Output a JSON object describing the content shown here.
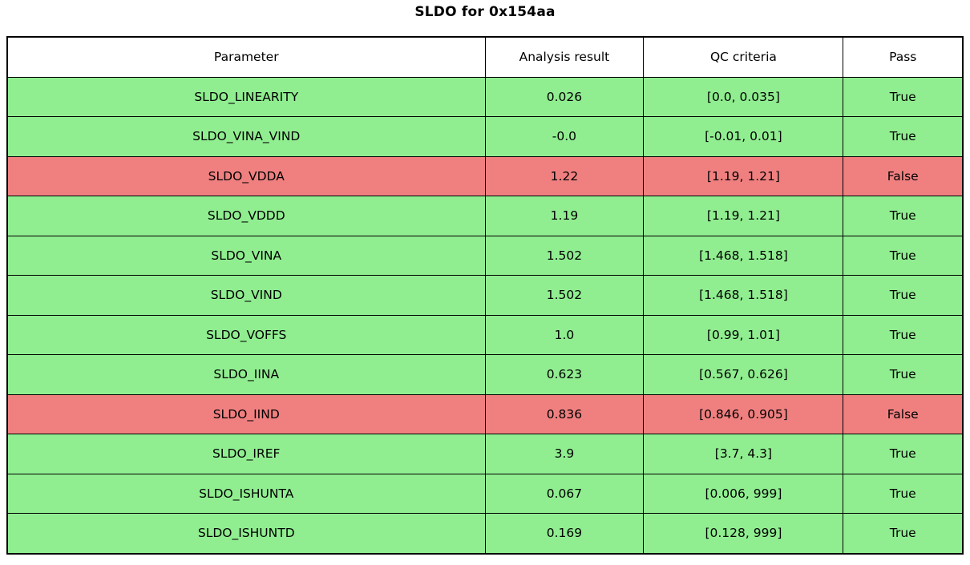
{
  "title": "SLDO for 0x154aa",
  "chart_data": {
    "type": "table",
    "title": "SLDO for 0x154aa",
    "columns": [
      "Parameter",
      "Analysis result",
      "QC criteria",
      "Pass"
    ],
    "rows": [
      {
        "parameter": "SLDO_LINEARITY",
        "result": "0.026",
        "criteria": "[0.0, 0.035]",
        "pass": "True",
        "status": "pass"
      },
      {
        "parameter": "SLDO_VINA_VIND",
        "result": "-0.0",
        "criteria": "[-0.01, 0.01]",
        "pass": "True",
        "status": "pass"
      },
      {
        "parameter": "SLDO_VDDA",
        "result": "1.22",
        "criteria": "[1.19, 1.21]",
        "pass": "False",
        "status": "fail"
      },
      {
        "parameter": "SLDO_VDDD",
        "result": "1.19",
        "criteria": "[1.19, 1.21]",
        "pass": "True",
        "status": "pass"
      },
      {
        "parameter": "SLDO_VINA",
        "result": "1.502",
        "criteria": "[1.468, 1.518]",
        "pass": "True",
        "status": "pass"
      },
      {
        "parameter": "SLDO_VIND",
        "result": "1.502",
        "criteria": "[1.468, 1.518]",
        "pass": "True",
        "status": "pass"
      },
      {
        "parameter": "SLDO_VOFFS",
        "result": "1.0",
        "criteria": "[0.99, 1.01]",
        "pass": "True",
        "status": "pass"
      },
      {
        "parameter": "SLDO_IINA",
        "result": "0.623",
        "criteria": "[0.567, 0.626]",
        "pass": "True",
        "status": "pass"
      },
      {
        "parameter": "SLDO_IIND",
        "result": "0.836",
        "criteria": "[0.846, 0.905]",
        "pass": "False",
        "status": "fail"
      },
      {
        "parameter": "SLDO_IREF",
        "result": "3.9",
        "criteria": "[3.7, 4.3]",
        "pass": "True",
        "status": "pass"
      },
      {
        "parameter": "SLDO_ISHUNTA",
        "result": "0.067",
        "criteria": "[0.006, 999]",
        "pass": "True",
        "status": "pass"
      },
      {
        "parameter": "SLDO_ISHUNTD",
        "result": "0.169",
        "criteria": "[0.128, 999]",
        "pass": "True",
        "status": "pass"
      }
    ],
    "colors": {
      "pass_row_bg": "#90EE90",
      "fail_row_bg": "#F08080",
      "header_bg": "#FFFFFF",
      "border": "#000000",
      "text": "#000000"
    },
    "layout": {
      "grid": "full-cell-borders",
      "header_position": "top"
    }
  }
}
